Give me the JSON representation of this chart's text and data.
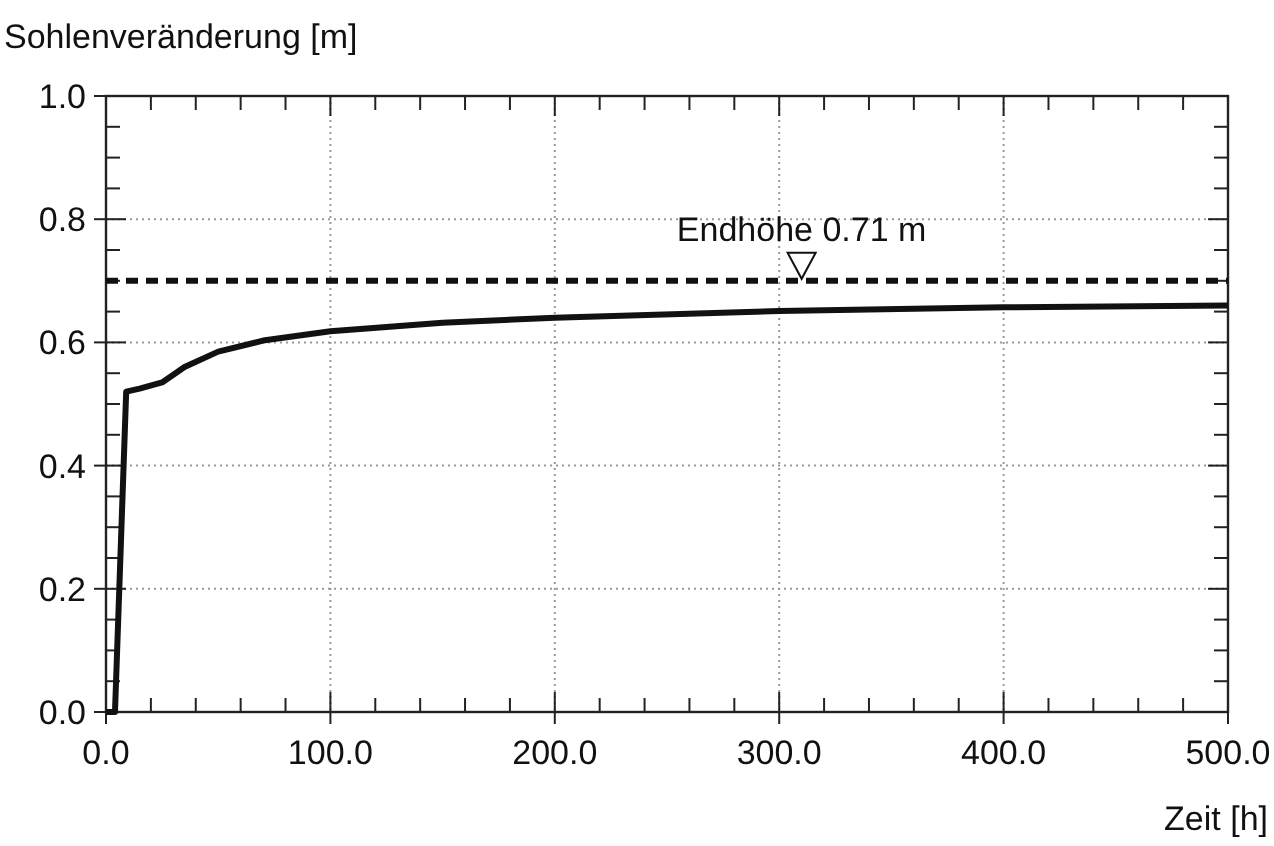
{
  "chart_data": {
    "type": "line",
    "ylabel": "Sohlenveränderung [m]",
    "xlabel": "Zeit [h]",
    "x": [
      0,
      4,
      9,
      15,
      25,
      35,
      50,
      70,
      100,
      150,
      200,
      300,
      400,
      500
    ],
    "series": [
      {
        "color": "#111111",
        "values": [
          0,
          0,
          0.52,
          0.525,
          0.535,
          0.56,
          0.585,
          0.603,
          0.618,
          0.632,
          0.64,
          0.651,
          0.657,
          0.66
        ]
      }
    ],
    "xlim": [
      0,
      500
    ],
    "ylim": [
      0,
      1
    ],
    "xticks": [
      {
        "value": 0,
        "label": "0.0"
      },
      {
        "value": 20,
        "label": null
      },
      {
        "value": 40,
        "label": null
      },
      {
        "value": 60,
        "label": null
      },
      {
        "value": 80,
        "label": null
      },
      {
        "value": 100,
        "label": "100.0"
      },
      {
        "value": 120,
        "label": null
      },
      {
        "value": 140,
        "label": null
      },
      {
        "value": 160,
        "label": null
      },
      {
        "value": 180,
        "label": null
      },
      {
        "value": 200,
        "label": "200.0"
      },
      {
        "value": 220,
        "label": null
      },
      {
        "value": 240,
        "label": null
      },
      {
        "value": 260,
        "label": null
      },
      {
        "value": 280,
        "label": null
      },
      {
        "value": 300,
        "label": "300.0"
      },
      {
        "value": 320,
        "label": null
      },
      {
        "value": 340,
        "label": null
      },
      {
        "value": 360,
        "label": null
      },
      {
        "value": 380,
        "label": null
      },
      {
        "value": 400,
        "label": "400.0"
      },
      {
        "value": 420,
        "label": null
      },
      {
        "value": 440,
        "label": null
      },
      {
        "value": 460,
        "label": null
      },
      {
        "value": 480,
        "label": null
      },
      {
        "value": 500,
        "label": "500.0"
      }
    ],
    "yticks": [
      {
        "value": 0,
        "label": "0.0"
      },
      {
        "value": 0.05,
        "label": null
      },
      {
        "value": 0.1,
        "label": null
      },
      {
        "value": 0.15,
        "label": null
      },
      {
        "value": 0.2,
        "label": "0.2"
      },
      {
        "value": 0.25,
        "label": null
      },
      {
        "value": 0.3,
        "label": null
      },
      {
        "value": 0.35,
        "label": null
      },
      {
        "value": 0.4,
        "label": "0.4"
      },
      {
        "value": 0.45,
        "label": null
      },
      {
        "value": 0.5,
        "label": null
      },
      {
        "value": 0.55,
        "label": null
      },
      {
        "value": 0.6,
        "label": "0.6"
      },
      {
        "value": 0.65,
        "label": null
      },
      {
        "value": 0.7,
        "label": null
      },
      {
        "value": 0.75,
        "label": null
      },
      {
        "value": 0.8,
        "label": "0.8"
      },
      {
        "value": 0.85,
        "label": null
      },
      {
        "value": 0.9,
        "label": null
      },
      {
        "value": 0.95,
        "label": null
      },
      {
        "value": 1,
        "label": "1.0"
      }
    ],
    "grid": true,
    "line_style": "solid",
    "marker": "none",
    "ref_lines": [
      {
        "axis": "y",
        "value": 0.7,
        "label": "Endhöhe 0.71 m",
        "line_style": "dashed",
        "color": "#111111"
      }
    ]
  }
}
